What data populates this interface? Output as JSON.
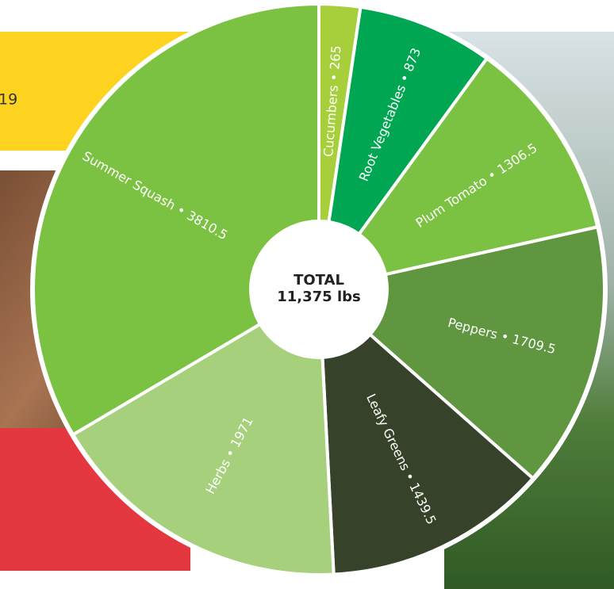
{
  "panel": {
    "text": "19"
  },
  "chart_data": {
    "type": "pie",
    "center_title": "TOTAL",
    "center_value": "11,375 lbs",
    "label_separator": " • ",
    "categories": [
      "Cucumbers",
      "Root Vegetables",
      "Plum Tomato",
      "Peppers",
      "Leafy Greens",
      "Herbs",
      "Summer Squash"
    ],
    "values": [
      265,
      873,
      1306.5,
      1709.5,
      1439.5,
      1971,
      3810.5
    ],
    "colors": [
      "#a6cf3b",
      "#00a651",
      "#7cc242",
      "#5f963f",
      "#36422a",
      "#a6d07c",
      "#7cc242"
    ]
  }
}
